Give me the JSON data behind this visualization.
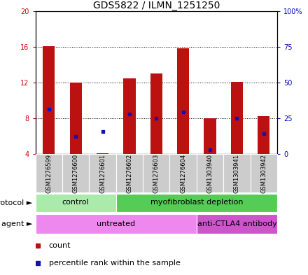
{
  "title": "GDS5822 / ILMN_1251250",
  "samples": [
    "GSM1276599",
    "GSM1276600",
    "GSM1276601",
    "GSM1276602",
    "GSM1276603",
    "GSM1276604",
    "GSM1303940",
    "GSM1303941",
    "GSM1303942"
  ],
  "counts": [
    16.1,
    12.0,
    4.05,
    12.5,
    13.0,
    15.8,
    8.0,
    12.1,
    8.2
  ],
  "percentiles": [
    9.0,
    6.0,
    6.5,
    8.5,
    8.0,
    8.7,
    4.5,
    8.0,
    6.3
  ],
  "y_min": 4,
  "y_max": 20,
  "y_ticks_left": [
    4,
    8,
    12,
    16,
    20
  ],
  "right_tick_positions": [
    4,
    8,
    12,
    16,
    20
  ],
  "right_tick_labels": [
    "0",
    "25",
    "50",
    "75",
    "100%"
  ],
  "bar_color": "#bb1111",
  "dot_color": "#1111bb",
  "bar_bottom": 4,
  "bar_width": 0.45,
  "protocol_groups": [
    {
      "label": "control",
      "start": 0,
      "end": 3,
      "color": "#aaeaaa"
    },
    {
      "label": "myofibroblast depletion",
      "start": 3,
      "end": 9,
      "color": "#55cc55"
    }
  ],
  "agent_groups": [
    {
      "label": "untreated",
      "start": 0,
      "end": 6,
      "color": "#ee88ee"
    },
    {
      "label": "anti-CTLA4 antibody",
      "start": 6,
      "end": 9,
      "color": "#cc55cc"
    }
  ],
  "legend_count_color": "#bb1111",
  "legend_pct_color": "#1111bb",
  "title_fontsize": 10,
  "tick_fontsize": 7,
  "label_fontsize": 7,
  "band_fontsize": 8,
  "left_tick_color": "#cc0000",
  "right_tick_color": "#0000cc",
  "grid_color": "black",
  "grid_linestyle": "dotted",
  "grid_linewidth": 0.7,
  "sample_bg_color": "#cccccc",
  "sample_fontsize": 6
}
